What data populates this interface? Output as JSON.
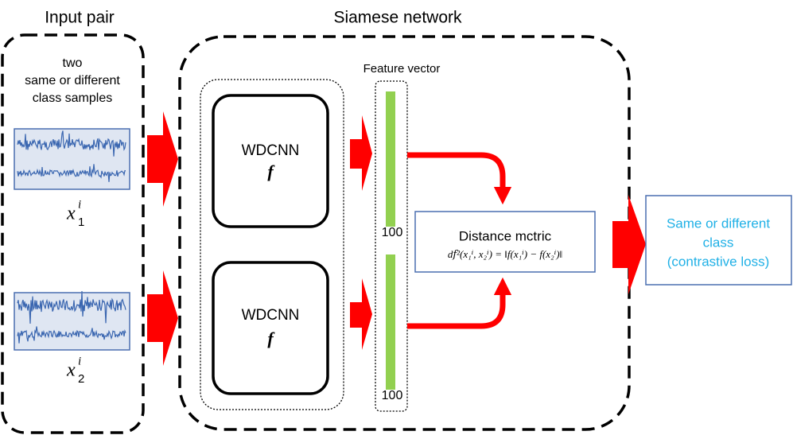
{
  "input_pair": {
    "title": "Input pair",
    "description": [
      "two",
      "same or different",
      "class samples"
    ],
    "samples": [
      {
        "base": "x",
        "sup": "i",
        "sub": "1"
      },
      {
        "base": "x",
        "sup": "i",
        "sub": "2"
      }
    ]
  },
  "siamese_network": {
    "title": "Siamese network",
    "branches": [
      {
        "label": "WDCNN",
        "function": "f"
      },
      {
        "label": "WDCNN",
        "function": "f"
      }
    ],
    "feature_vector": {
      "title": "Feature vector",
      "sizes": [
        "100",
        "100"
      ]
    },
    "distance": {
      "title": "Distance mctric",
      "formula": "d𝑓²(x₁ⁱ, x₂ⁱ) = ‖f(x₁ⁱ) − f(x₂ⁱ)‖"
    }
  },
  "output": {
    "lines": [
      "Same or different",
      "class",
      "(contrastive loss)"
    ]
  }
}
